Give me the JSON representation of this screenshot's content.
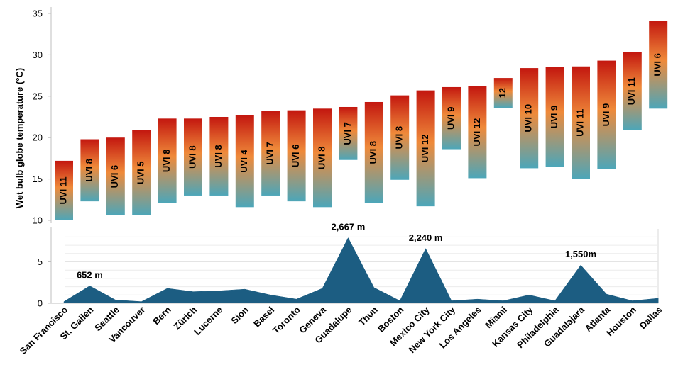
{
  "chart_data": [
    {
      "type": "bar",
      "subtype": "floating-range",
      "title": "",
      "xlabel": "",
      "ylabel": "Wet bulb globe temperature (°C)",
      "ylim": [
        10,
        35
      ],
      "yticks": [
        "10",
        "15",
        "20",
        "25",
        "30",
        "35"
      ],
      "categories": [
        "San Francisco",
        "St. Gallen",
        "Seattle",
        "Vancouver",
        "Bern",
        "Zürich",
        "Lucerne",
        "Sion",
        "Basel",
        "Toronto",
        "Geneva",
        "Guadalupe",
        "Thun",
        "Boston",
        "Mexico City",
        "New York City",
        "Los Angeles",
        "Miami",
        "Kansas City",
        "Philadelphia",
        "Guadalajara",
        "Atlanta",
        "Houston",
        "Dallas"
      ],
      "low": [
        10.0,
        12.3,
        10.6,
        10.6,
        12.1,
        13.0,
        13.0,
        11.6,
        13.0,
        12.3,
        11.6,
        17.3,
        12.1,
        14.9,
        11.7,
        18.6,
        15.1,
        23.6,
        16.3,
        16.5,
        15.0,
        16.2,
        20.9,
        23.5
      ],
      "high": [
        17.2,
        19.8,
        20.0,
        20.9,
        22.3,
        22.3,
        22.5,
        22.7,
        23.2,
        23.3,
        23.5,
        23.7,
        24.3,
        25.1,
        25.7,
        26.1,
        26.2,
        27.2,
        28.4,
        28.5,
        28.6,
        29.3,
        30.3,
        34.1
      ],
      "labels": [
        "UVI 11",
        "UVI 8",
        "UVI 6",
        "UVI 5",
        "UVI 8",
        "UVI 8",
        "UVI 8",
        "UVI 4",
        "UVI 7",
        "UVI 6",
        "UVI 8",
        "UVI 7",
        "UVI 8",
        "UVI 8",
        "UVI 12",
        "UVI 9",
        "UVI 12",
        "12",
        "UVI 10",
        "UVI 9",
        "UVI 11",
        "UVI 9",
        "UVI 11",
        "UVI 6"
      ],
      "gradient_colors": {
        "top": "#c3170f",
        "middle": "#ef8a3a",
        "bottom": "#4ca6b9"
      }
    },
    {
      "type": "area",
      "title": "",
      "ylabel": "",
      "ylim": [
        0,
        8
      ],
      "yticks": [
        "0",
        "5"
      ],
      "categories": [
        "San Francisco",
        "St. Gallen",
        "Seattle",
        "Vancouver",
        "Bern",
        "Zürich",
        "Lucerne",
        "Sion",
        "Basel",
        "Toronto",
        "Geneva",
        "Guadalupe",
        "Thun",
        "Boston",
        "Mexico City",
        "New York City",
        "Los Angeles",
        "Miami",
        "Kansas City",
        "Philadelphia",
        "Guadalajara",
        "Atlanta",
        "Houston",
        "Dallas"
      ],
      "values": [
        0.2,
        2.1,
        0.4,
        0.2,
        1.8,
        1.4,
        1.5,
        1.7,
        1.0,
        0.5,
        1.8,
        7.9,
        1.9,
        0.3,
        6.6,
        0.3,
        0.5,
        0.3,
        1.0,
        0.3,
        4.6,
        1.1,
        0.3,
        0.6
      ],
      "annotations": [
        {
          "category": "St. Gallen",
          "text": "652 m"
        },
        {
          "category": "Guadalupe",
          "text": "2,667 m"
        },
        {
          "category": "Mexico City",
          "text": "2,240 m"
        },
        {
          "category": "Guadalajara",
          "text": "1,550m"
        }
      ],
      "color": "#1c5d82",
      "grid": true
    }
  ]
}
